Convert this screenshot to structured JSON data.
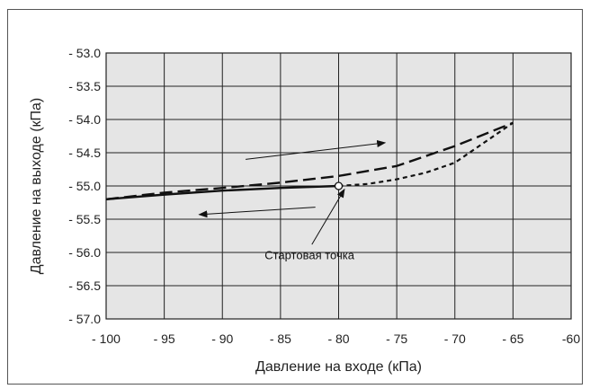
{
  "chart_data": {
    "type": "line",
    "title": "",
    "xlabel": "Давление на входе (кПа)",
    "ylabel": "Давление на выходе (кПа)",
    "xlim": [
      -100,
      -60
    ],
    "ylim": [
      -57.0,
      -53.0
    ],
    "x_ticks": [
      -100,
      -95,
      -90,
      -85,
      -80,
      -75,
      -70,
      -65,
      -60
    ],
    "x_tick_labels": [
      "- 100",
      "- 95",
      "- 90",
      "- 85",
      "- 80",
      "- 75",
      "- 70",
      "- 65",
      "-60"
    ],
    "y_ticks": [
      -53.0,
      -53.5,
      -54.0,
      -54.5,
      -55.0,
      -55.5,
      -56.0,
      -56.5,
      -57.0
    ],
    "y_tick_labels": [
      "- 53.0",
      "- 53.5",
      "- 54.0",
      "- 54.5",
      "- 55.0",
      "- 55.5",
      "- 56.0",
      "- 56.5",
      "- 57.0"
    ],
    "grid": true,
    "series": [
      {
        "style": "solid",
        "color": "#111111",
        "points": [
          [
            -100,
            -55.2
          ],
          [
            -95,
            -55.13
          ],
          [
            -90,
            -55.07
          ],
          [
            -85,
            -55.03
          ],
          [
            -80,
            -55.0
          ]
        ]
      },
      {
        "style": "long-dash",
        "color": "#111111",
        "points": [
          [
            -100,
            -55.2
          ],
          [
            -95,
            -55.1
          ],
          [
            -90,
            -55.03
          ],
          [
            -85,
            -54.95
          ],
          [
            -80,
            -54.85
          ],
          [
            -75,
            -54.7
          ],
          [
            -70,
            -54.4
          ],
          [
            -65,
            -54.05
          ]
        ]
      },
      {
        "style": "short-dash",
        "color": "#111111",
        "points": [
          [
            -80,
            -55.0
          ],
          [
            -77.5,
            -54.97
          ],
          [
            -75,
            -54.9
          ],
          [
            -72.5,
            -54.8
          ],
          [
            -70,
            -54.65
          ],
          [
            -67.5,
            -54.35
          ],
          [
            -65,
            -54.05
          ]
        ]
      }
    ],
    "start_point": [
      -80,
      -55.0
    ],
    "arrows": [
      {
        "from": [
          -88,
          -54.6
        ],
        "to": [
          -76,
          -54.35
        ]
      },
      {
        "from": [
          -82,
          -55.32
        ],
        "to": [
          -92,
          -55.43
        ]
      },
      {
        "from": [
          -82.3,
          -55.88
        ],
        "to": [
          -79.5,
          -55.05
        ]
      }
    ],
    "annotation": {
      "text": "Стартовая точка",
      "at": [
        -82.5,
        -55.9
      ]
    },
    "background": "#e5e5e5",
    "grid_color": "#222222"
  }
}
